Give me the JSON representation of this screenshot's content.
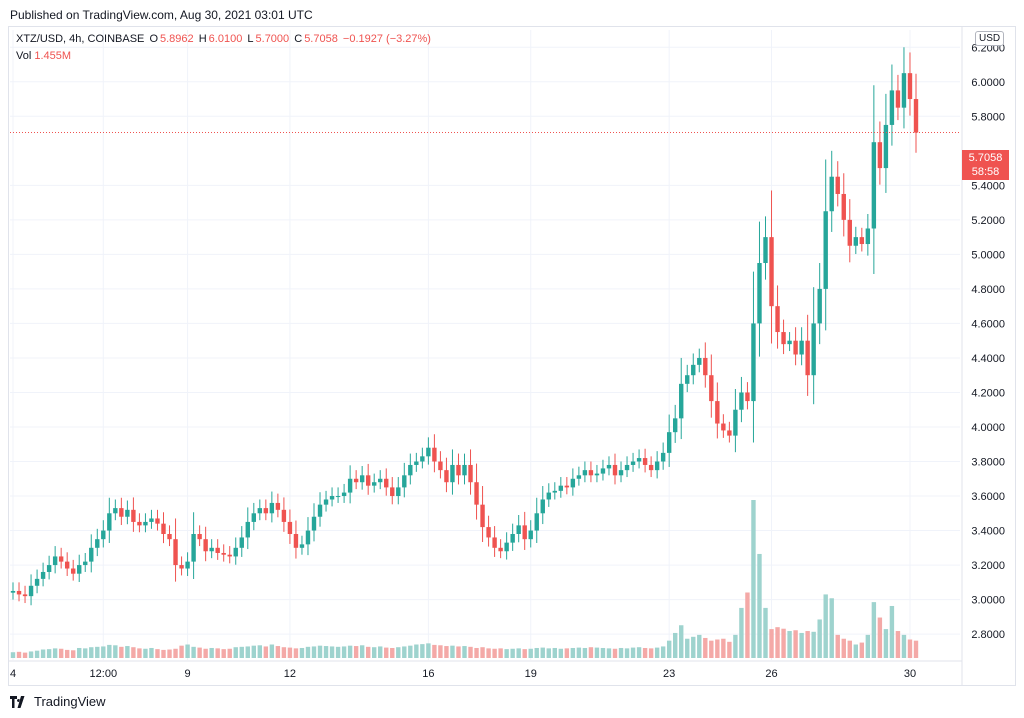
{
  "header": {
    "published": "Published on TradingView.com, Aug 30, 2021 03:01 UTC"
  },
  "legend": {
    "symbol": "XTZ/USD, 4h, COINBASE",
    "o_label": "O",
    "o_val": "5.8962",
    "h_label": "H",
    "h_val": "6.0100",
    "l_label": "L",
    "l_val": "5.7000",
    "c_label": "C",
    "c_val": "5.7058",
    "change": "−0.1927 (−3.27%)",
    "vol_label": "Vol",
    "vol_val": "1.455M"
  },
  "currency": "USD",
  "price_tag": {
    "price": "5.7058",
    "countdown": "58:58"
  },
  "footer": {
    "brand": "TradingView"
  },
  "colors": {
    "up": "#26a69a",
    "down": "#ef5350",
    "up_vol": "#9ed3ce",
    "down_vol": "#f4a9a7",
    "grid": "#f0f3fa"
  },
  "chart_data": {
    "type": "candlestick",
    "interval": "4h",
    "ylim": [
      2.65,
      6.3
    ],
    "y_ticks": [
      "6.2000",
      "6.0000",
      "5.8000",
      "5.4000",
      "5.2000",
      "5.0000",
      "4.8000",
      "4.6000",
      "4.4000",
      "4.2000",
      "4.0000",
      "3.8000",
      "3.6000",
      "3.4000",
      "3.2000",
      "3.0000",
      "2.8000"
    ],
    "x_ticks": [
      {
        "label": "4",
        "bar": 0
      },
      {
        "label": "12:00",
        "bar": 15
      },
      {
        "label": "9",
        "bar": 29
      },
      {
        "label": "12",
        "bar": 46
      },
      {
        "label": "16",
        "bar": 69
      },
      {
        "label": "19",
        "bar": 86
      },
      {
        "label": "23",
        "bar": 109
      },
      {
        "label": "26",
        "bar": 126
      },
      {
        "label": "30",
        "bar": 149
      }
    ],
    "last_price": 5.7058,
    "close": [
      3.05,
      3.03,
      3.02,
      3.08,
      3.12,
      3.16,
      3.2,
      3.25,
      3.22,
      3.18,
      3.15,
      3.2,
      3.22,
      3.3,
      3.35,
      3.4,
      3.5,
      3.53,
      3.48,
      3.52,
      3.45,
      3.43,
      3.45,
      3.47,
      3.44,
      3.38,
      3.35,
      3.2,
      3.18,
      3.22,
      3.38,
      3.35,
      3.28,
      3.3,
      3.27,
      3.26,
      3.25,
      3.3,
      3.36,
      3.45,
      3.5,
      3.53,
      3.5,
      3.56,
      3.52,
      3.45,
      3.38,
      3.3,
      3.32,
      3.4,
      3.48,
      3.55,
      3.58,
      3.6,
      3.6,
      3.62,
      3.7,
      3.68,
      3.72,
      3.66,
      3.68,
      3.7,
      3.65,
      3.6,
      3.65,
      3.72,
      3.78,
      3.8,
      3.83,
      3.88,
      3.8,
      3.75,
      3.68,
      3.78,
      3.72,
      3.78,
      3.68,
      3.55,
      3.42,
      3.36,
      3.3,
      3.28,
      3.33,
      3.38,
      3.43,
      3.35,
      3.4,
      3.5,
      3.58,
      3.62,
      3.63,
      3.66,
      3.65,
      3.7,
      3.72,
      3.75,
      3.72,
      3.73,
      3.76,
      3.78,
      3.72,
      3.75,
      3.78,
      3.8,
      3.82,
      3.78,
      3.75,
      3.8,
      3.85,
      3.97,
      4.05,
      4.25,
      4.3,
      4.36,
      4.4,
      4.3,
      4.15,
      4.02,
      3.98,
      3.95,
      4.1,
      4.2,
      4.15,
      4.6,
      4.95,
      5.1,
      4.7,
      4.55,
      4.48,
      4.5,
      4.42,
      4.5,
      4.3,
      4.6,
      4.8,
      5.25,
      5.45,
      5.35,
      5.2,
      5.05,
      5.1,
      5.06,
      5.15,
      5.65,
      5.5,
      5.75,
      5.95,
      5.85,
      6.05,
      5.9,
      5.7058
    ],
    "volume": [
      1.5,
      1.6,
      1.4,
      1.7,
      1.9,
      2.2,
      2.3,
      2.5,
      2.4,
      2.1,
      2.0,
      2.6,
      2.5,
      2.8,
      2.9,
      3.0,
      3.4,
      3.3,
      2.9,
      3.1,
      2.8,
      2.5,
      2.4,
      2.6,
      2.3,
      2.1,
      2.2,
      2.4,
      3.2,
      3.5,
      2.9,
      2.7,
      2.4,
      2.6,
      2.5,
      2.3,
      2.4,
      2.8,
      2.9,
      3.0,
      3.2,
      3.3,
      3.0,
      3.5,
      3.1,
      2.8,
      2.7,
      2.5,
      2.6,
      2.9,
      3.0,
      3.2,
      3.1,
      3.0,
      2.9,
      3.0,
      3.2,
      3.1,
      3.3,
      2.9,
      2.8,
      3.0,
      2.7,
      2.6,
      2.8,
      3.0,
      3.2,
      3.5,
      3.6,
      3.8,
      3.4,
      3.3,
      3.1,
      3.2,
      3.0,
      3.1,
      2.9,
      2.6,
      2.8,
      2.5,
      2.4,
      2.5,
      2.3,
      2.4,
      2.5,
      2.3,
      2.4,
      2.6,
      2.7,
      2.5,
      2.6,
      2.4,
      2.5,
      2.6,
      2.7,
      2.6,
      2.8,
      2.7,
      2.6,
      2.5,
      2.4,
      2.6,
      2.5,
      2.7,
      2.8,
      2.6,
      2.5,
      2.7,
      3.0,
      4.5,
      6.5,
      8.5,
      5.0,
      5.5,
      6.0,
      5.2,
      4.5,
      4.8,
      5.0,
      4.2,
      6.0,
      13.0,
      17.0,
      41.0,
      27.0,
      13.0,
      7.5,
      8.0,
      7.6,
      7.0,
      7.2,
      6.5,
      7.0,
      6.8,
      10.0,
      16.5,
      15.5,
      6.0,
      5.0,
      4.5,
      3.5,
      4.0,
      6.0,
      14.5,
      10.5,
      7.5,
      13.5,
      7.0,
      6.0,
      4.8,
      4.5
    ]
  }
}
